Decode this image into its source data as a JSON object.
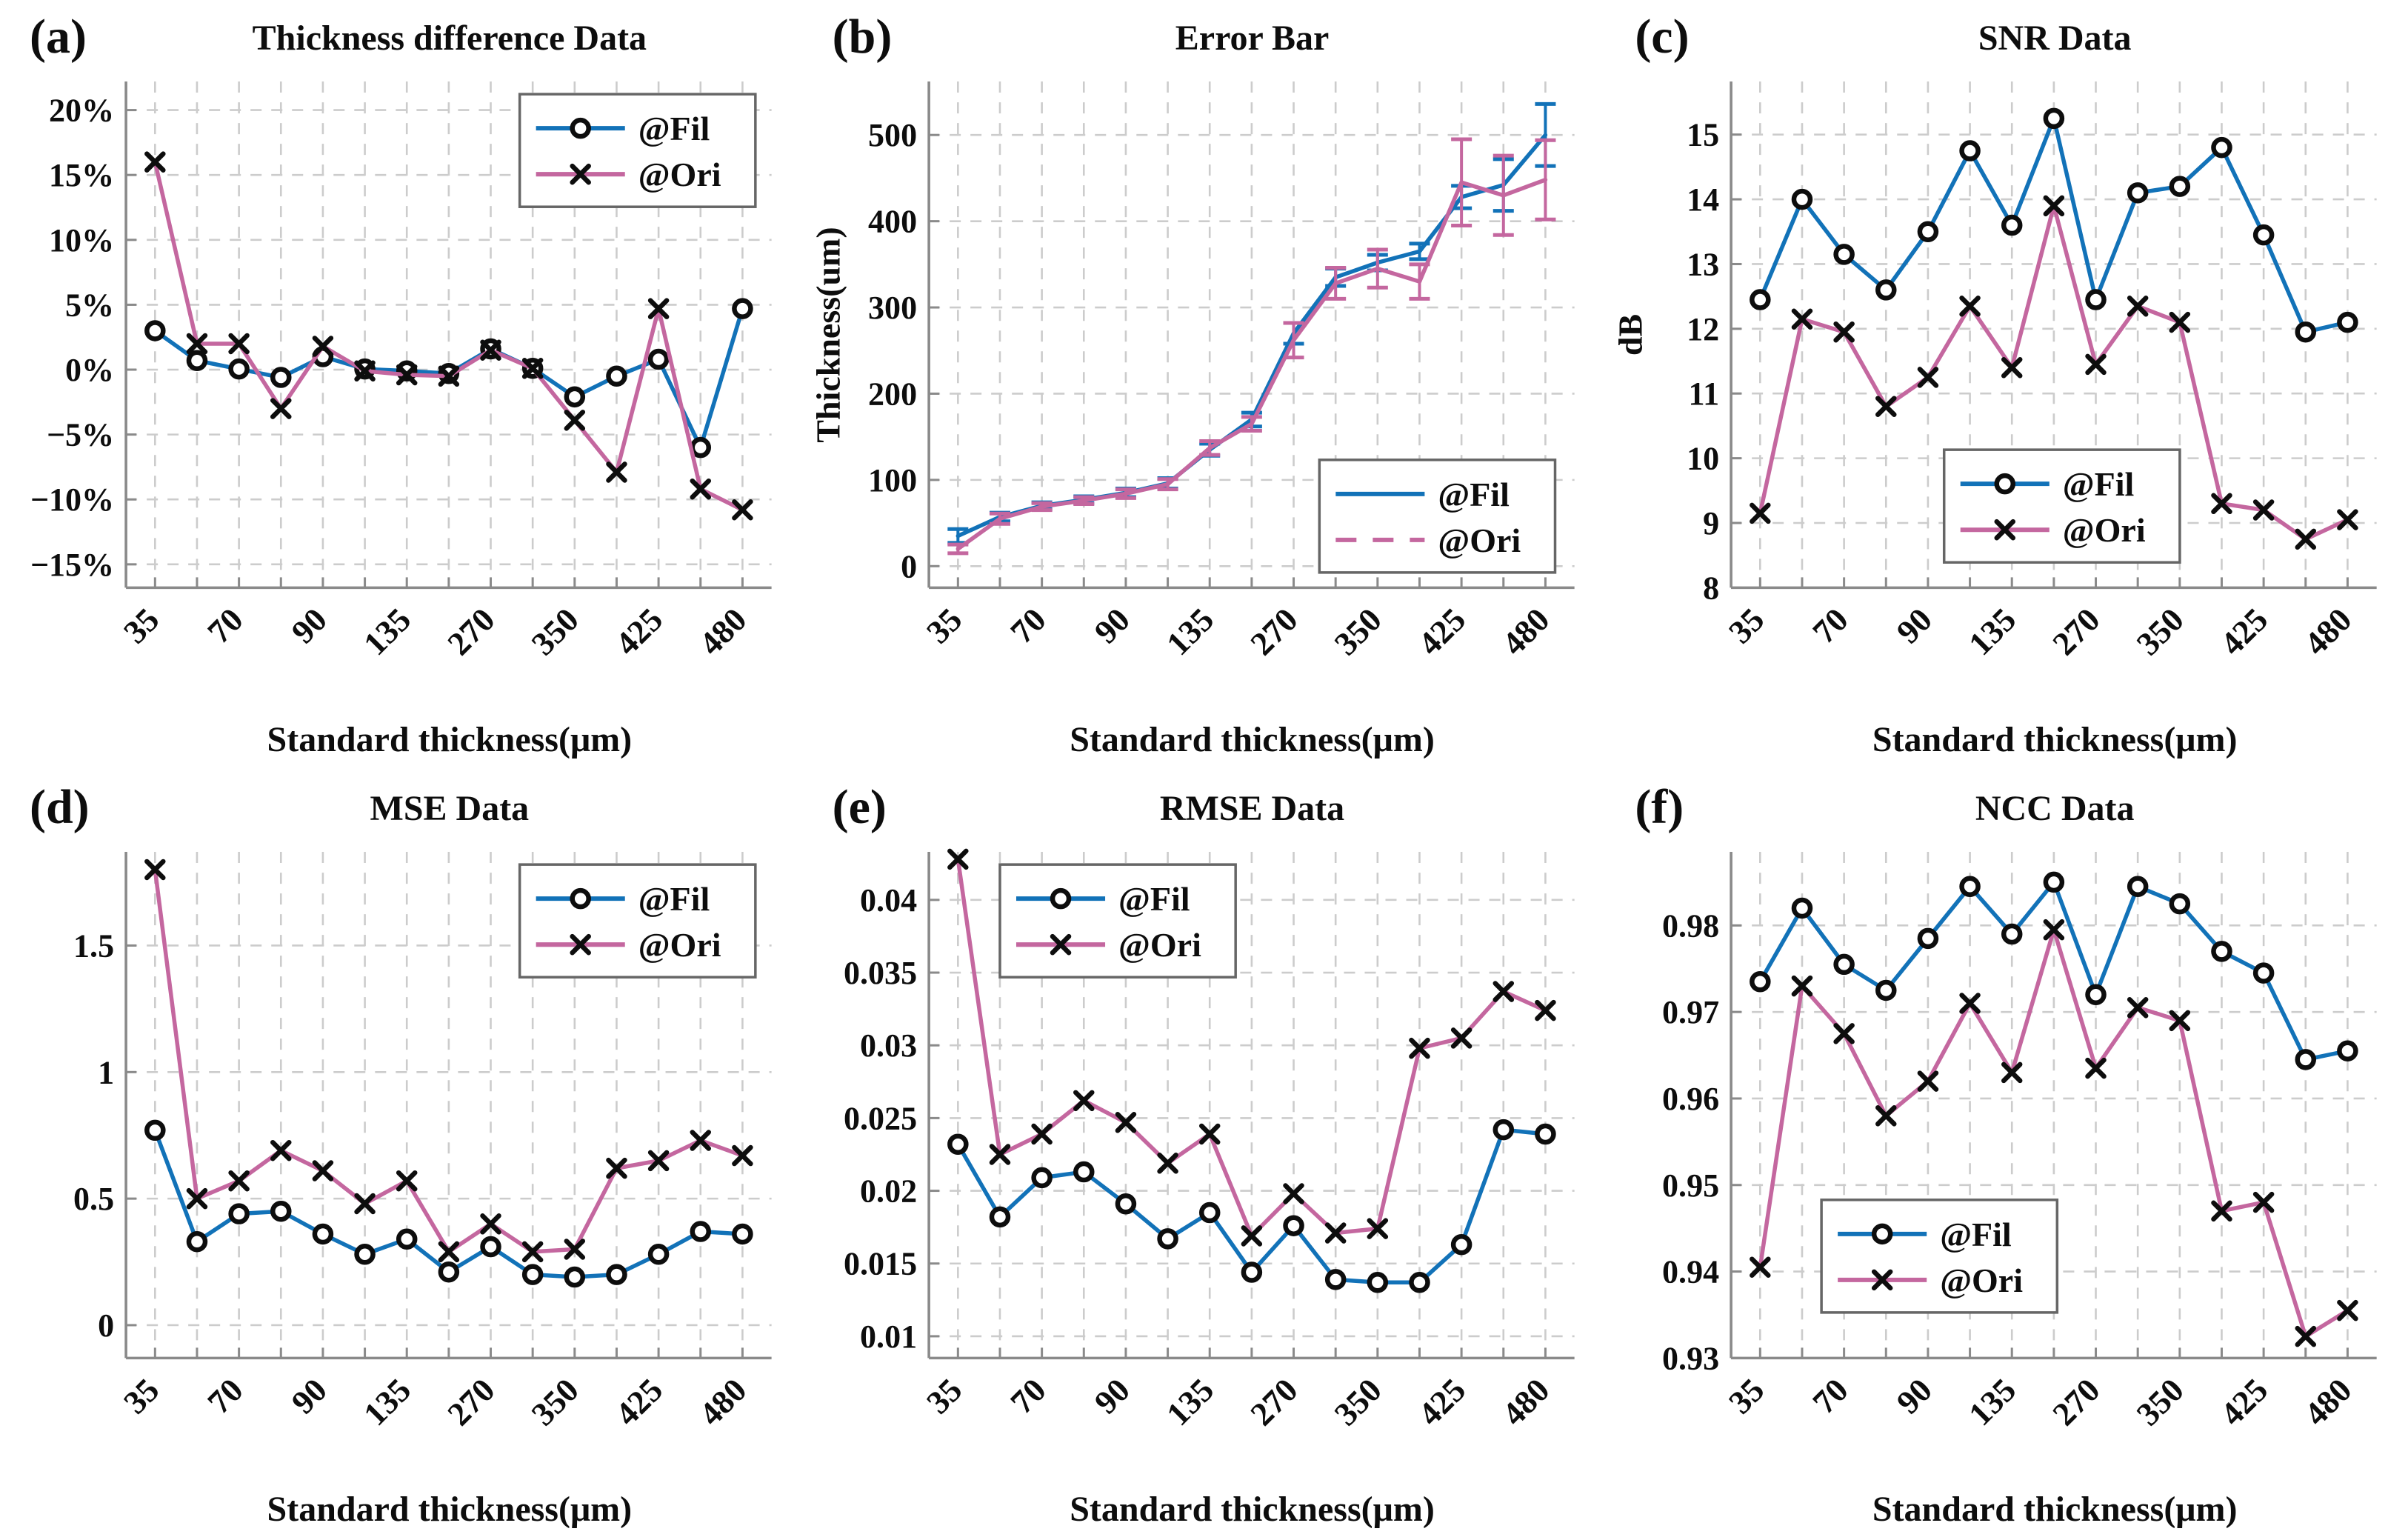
{
  "figure": {
    "background": "#ffffff",
    "accent_blue": "#1272b8",
    "accent_pink": "#c4679f",
    "grid_color": "#cccccc",
    "axis_color": "#8a8a8a",
    "marker_color": "#0d0d0d"
  },
  "chart_data": [
    {
      "id": "a",
      "panel_label": "(a)",
      "title": "Thickness difference Data",
      "type": "line",
      "xlabel": "Standard thickness(μm)",
      "ylabel": "",
      "categories": [
        "35",
        "",
        "70",
        "",
        "90",
        "",
        "135",
        "",
        "270",
        "",
        "350",
        "",
        "425",
        "",
        "480"
      ],
      "ylim": [
        -16.8,
        22.2
      ],
      "yticks": [
        {
          "v": 20,
          "label": "20%"
        },
        {
          "v": 15,
          "label": "15%"
        },
        {
          "v": 10,
          "label": "10%"
        },
        {
          "v": 5,
          "label": "5%"
        },
        {
          "v": 0,
          "label": "0%"
        },
        {
          "v": -5,
          "label": "−5%"
        },
        {
          "v": -10,
          "label": "−10%"
        },
        {
          "v": -15,
          "label": "−15%"
        }
      ],
      "legend": {
        "anchor": "ne",
        "fx": 0.975,
        "fy": 0.975
      },
      "series": [
        {
          "name": "@Fil",
          "color": "#1272b8",
          "marker": "circle",
          "dash": null,
          "legend_dash": null,
          "values": [
            3.0,
            0.7,
            0.05,
            -0.6,
            1.0,
            0.05,
            -0.1,
            -0.3,
            1.6,
            0.1,
            -2.1,
            -0.5,
            0.8,
            -6.0,
            4.7
          ]
        },
        {
          "name": "@Ori",
          "color": "#c4679f",
          "marker": "x",
          "dash": null,
          "legend_dash": null,
          "values": [
            16.0,
            2.0,
            2.0,
            -3.0,
            1.8,
            -0.1,
            -0.4,
            -0.5,
            1.5,
            0.1,
            -3.9,
            -7.9,
            4.7,
            -9.2,
            -10.8
          ]
        }
      ]
    },
    {
      "id": "b",
      "panel_label": "(b)",
      "title": "Error Bar",
      "type": "errorbar",
      "xlabel": "Standard thickness(μm)",
      "ylabel": "Thickness(um)",
      "categories": [
        "35",
        "",
        "70",
        "",
        "90",
        "",
        "135",
        "",
        "270",
        "",
        "350",
        "",
        "425",
        "",
        "480"
      ],
      "ylim": [
        -25,
        562
      ],
      "yticks": [
        {
          "v": 500,
          "label": "500"
        },
        {
          "v": 400,
          "label": "400"
        },
        {
          "v": 300,
          "label": "300"
        },
        {
          "v": 200,
          "label": "200"
        },
        {
          "v": 100,
          "label": "100"
        },
        {
          "v": 0,
          "label": "0"
        }
      ],
      "legend": {
        "anchor": "se",
        "fx": 0.97,
        "fy": 0.03
      },
      "series": [
        {
          "name": "@Fil",
          "color": "#1272b8",
          "marker": "none",
          "dash": null,
          "legend_dash": null,
          "values": [
            35,
            57,
            70,
            77,
            85,
            96,
            135,
            170,
            270,
            335,
            352,
            365,
            428,
            442,
            500
          ],
          "errors": [
            8,
            5,
            4,
            4,
            5,
            6,
            7,
            8,
            12,
            10,
            9,
            9,
            13,
            30,
            36
          ]
        },
        {
          "name": "@Ori",
          "color": "#c4679f",
          "marker": "none",
          "dash": null,
          "legend_dash": "28 22",
          "values": [
            20,
            55,
            69,
            76,
            84,
            95,
            137,
            165,
            262,
            328,
            345,
            330,
            445,
            430,
            448
          ],
          "errors": [
            5,
            6,
            4,
            4,
            5,
            6,
            8,
            8,
            20,
            18,
            22,
            20,
            50,
            46,
            46
          ]
        }
      ]
    },
    {
      "id": "c",
      "panel_label": "(c)",
      "title": "SNR Data",
      "type": "line",
      "xlabel": "Standard thickness(μm)",
      "ylabel": "dB",
      "categories": [
        "35",
        "",
        "70",
        "",
        "90",
        "",
        "135",
        "",
        "270",
        "",
        "350",
        "",
        "425",
        "",
        "480"
      ],
      "ylim": [
        8,
        15.82
      ],
      "yticks": [
        {
          "v": 15,
          "label": "15"
        },
        {
          "v": 14,
          "label": "14"
        },
        {
          "v": 13,
          "label": "13"
        },
        {
          "v": 12,
          "label": "12"
        },
        {
          "v": 11,
          "label": "11"
        },
        {
          "v": 10,
          "label": "10"
        },
        {
          "v": 9,
          "label": "9"
        },
        {
          "v": 8,
          "label": "8"
        }
      ],
      "legend": {
        "anchor": "sw",
        "fx": 0.33,
        "fy": 0.05
      },
      "series": [
        {
          "name": "@Fil",
          "color": "#1272b8",
          "marker": "circle",
          "dash": null,
          "legend_dash": null,
          "values": [
            12.45,
            14.0,
            13.15,
            12.6,
            13.5,
            14.75,
            13.6,
            15.25,
            12.45,
            14.1,
            14.2,
            14.8,
            13.45,
            11.95,
            12.1
          ]
        },
        {
          "name": "@Ori",
          "color": "#c4679f",
          "marker": "x",
          "dash": null,
          "legend_dash": null,
          "values": [
            9.15,
            12.15,
            11.95,
            10.8,
            11.25,
            12.35,
            11.4,
            13.9,
            11.45,
            12.35,
            12.1,
            9.3,
            9.2,
            8.75,
            9.05
          ]
        }
      ]
    },
    {
      "id": "d",
      "panel_label": "(d)",
      "title": "MSE Data",
      "type": "line",
      "xlabel": "Standard thickness(μm)",
      "ylabel": "",
      "categories": [
        "35",
        "",
        "70",
        "",
        "90",
        "",
        "135",
        "",
        "270",
        "",
        "350",
        "",
        "425",
        "",
        "480"
      ],
      "ylim": [
        -0.13,
        1.87
      ],
      "yticks": [
        {
          "v": 1.5,
          "label": "1.5"
        },
        {
          "v": 1,
          "label": "1"
        },
        {
          "v": 0.5,
          "label": "0.5"
        },
        {
          "v": 0,
          "label": "0"
        }
      ],
      "legend": {
        "anchor": "ne",
        "fx": 0.975,
        "fy": 0.975
      },
      "series": [
        {
          "name": "@Fil",
          "color": "#1272b8",
          "marker": "circle",
          "dash": null,
          "legend_dash": null,
          "values": [
            0.77,
            0.33,
            0.44,
            0.45,
            0.36,
            0.28,
            0.34,
            0.21,
            0.31,
            0.2,
            0.19,
            0.2,
            0.28,
            0.37,
            0.36
          ]
        },
        {
          "name": "@Ori",
          "color": "#c4679f",
          "marker": "x",
          "dash": null,
          "legend_dash": null,
          "values": [
            1.8,
            0.5,
            0.57,
            0.69,
            0.61,
            0.48,
            0.57,
            0.29,
            0.4,
            0.29,
            0.3,
            0.62,
            0.65,
            0.73,
            0.67
          ]
        }
      ]
    },
    {
      "id": "e",
      "panel_label": "(e)",
      "title": "RMSE Data",
      "type": "line",
      "xlabel": "Standard thickness(μm)",
      "ylabel": "",
      "categories": [
        "35",
        "",
        "70",
        "",
        "90",
        "",
        "135",
        "",
        "270",
        "",
        "350",
        "",
        "425",
        "",
        "480"
      ],
      "ylim": [
        0.0085,
        0.0433
      ],
      "yticks": [
        {
          "v": 0.04,
          "label": "0.04"
        },
        {
          "v": 0.035,
          "label": "0.035"
        },
        {
          "v": 0.03,
          "label": "0.03"
        },
        {
          "v": 0.025,
          "label": "0.025"
        },
        {
          "v": 0.02,
          "label": "0.02"
        },
        {
          "v": 0.015,
          "label": "0.015"
        },
        {
          "v": 0.01,
          "label": "0.01"
        }
      ],
      "legend": {
        "anchor": "nw",
        "fx": 0.11,
        "fy": 0.975
      },
      "series": [
        {
          "name": "@Fil",
          "color": "#1272b8",
          "marker": "circle",
          "dash": null,
          "legend_dash": null,
          "values": [
            0.0232,
            0.0182,
            0.0209,
            0.0213,
            0.0191,
            0.0167,
            0.0185,
            0.0144,
            0.0176,
            0.0139,
            0.0137,
            0.0137,
            0.0163,
            0.0242,
            0.0239
          ]
        },
        {
          "name": "@Ori",
          "color": "#c4679f",
          "marker": "x",
          "dash": null,
          "legend_dash": null,
          "values": [
            0.0428,
            0.0225,
            0.0239,
            0.0262,
            0.0247,
            0.0219,
            0.0239,
            0.0169,
            0.0198,
            0.0171,
            0.0174,
            0.0298,
            0.0305,
            0.0337,
            0.0324
          ]
        }
      ]
    },
    {
      "id": "f",
      "panel_label": "(f)",
      "title": "NCC Data",
      "type": "line",
      "xlabel": "Standard thickness(μm)",
      "ylabel": "",
      "categories": [
        "35",
        "",
        "70",
        "",
        "90",
        "",
        "135",
        "",
        "270",
        "",
        "350",
        "",
        "425",
        "",
        "480"
      ],
      "ylim": [
        0.93,
        0.9885
      ],
      "yticks": [
        {
          "v": 0.98,
          "label": "0.98"
        },
        {
          "v": 0.97,
          "label": "0.97"
        },
        {
          "v": 0.96,
          "label": "0.96"
        },
        {
          "v": 0.95,
          "label": "0.95"
        },
        {
          "v": 0.94,
          "label": "0.94"
        },
        {
          "v": 0.93,
          "label": "0.93"
        }
      ],
      "legend": {
        "anchor": "sw",
        "fx": 0.14,
        "fy": 0.09
      },
      "series": [
        {
          "name": "@Fil",
          "color": "#1272b8",
          "marker": "circle",
          "dash": null,
          "legend_dash": null,
          "values": [
            0.9735,
            0.982,
            0.9755,
            0.9725,
            0.9785,
            0.9845,
            0.979,
            0.985,
            0.972,
            0.9845,
            0.9825,
            0.977,
            0.9745,
            0.9645,
            0.9655
          ]
        },
        {
          "name": "@Ori",
          "color": "#c4679f",
          "marker": "x",
          "dash": null,
          "legend_dash": null,
          "values": [
            0.9405,
            0.973,
            0.9675,
            0.958,
            0.962,
            0.971,
            0.963,
            0.9795,
            0.9635,
            0.9705,
            0.969,
            0.947,
            0.948,
            0.9325,
            0.9355
          ]
        }
      ]
    }
  ]
}
